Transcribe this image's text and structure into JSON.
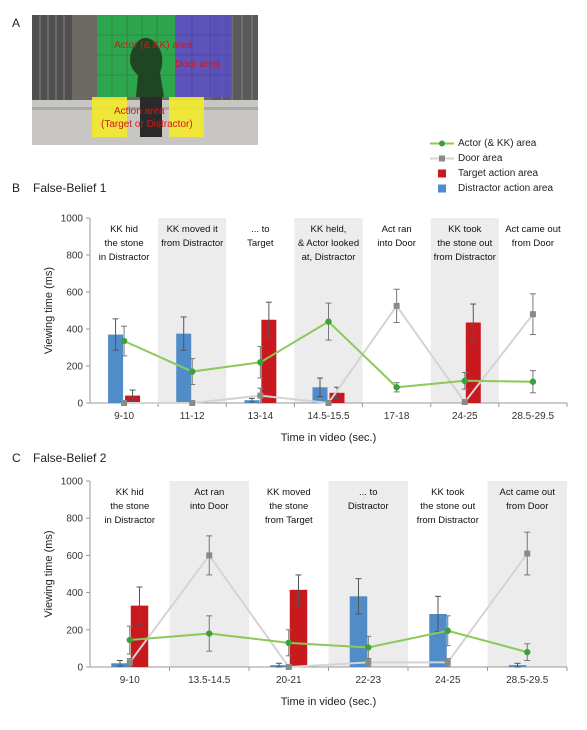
{
  "panel_a": {
    "letter": "A",
    "areas": [
      {
        "label": "Actor (& KK) area",
        "color": "#22b04a"
      },
      {
        "label": "Door area",
        "color": "#5b4fc9"
      },
      {
        "label": "Action area",
        "color": "#f2ea2a"
      },
      {
        "label": "(Target or Distractor)",
        "color": "#f2ea2a"
      }
    ]
  },
  "legend": {
    "items": [
      {
        "label": "Actor (& KK) area",
        "kind": "line-circle",
        "color": "#8cc85a"
      },
      {
        "label": "Door area",
        "kind": "line-square",
        "color": "#c8c8c8"
      },
      {
        "label": "Target action area",
        "kind": "square",
        "color": "#c8191e"
      },
      {
        "label": "Distractor action area",
        "kind": "square",
        "color": "#4f8cc8"
      }
    ]
  },
  "panel_b": {
    "letter": "B",
    "title": "False-Belief 1"
  },
  "panel_c": {
    "letter": "C",
    "title": "False-Belief 2"
  },
  "colors": {
    "actor_line": "#8cc85a",
    "actor_marker": "#3da03a",
    "door_line": "#d4d4d4",
    "door_marker": "#8a8a8a",
    "target": "#c8191e",
    "distractor": "#4f8cc8",
    "shade": "#ececec"
  },
  "chart_data": [
    {
      "type": "bar",
      "title": "False-Belief 1",
      "xlabel": "Time in video (sec.)",
      "ylabel": "Viewing time (ms)",
      "ylim": [
        0,
        1000
      ],
      "yticks": [
        0,
        200,
        400,
        600,
        800,
        1000
      ],
      "categories": [
        "9-10",
        "11-12",
        "13-14",
        "14.5-15.5",
        "17-18",
        "24-25",
        "28.5-29.5"
      ],
      "shaded": [
        false,
        true,
        false,
        true,
        false,
        true,
        false
      ],
      "annotations": [
        [
          "KK hid",
          "the stone",
          "in Distractor"
        ],
        [
          "KK moved it",
          "from Distractor"
        ],
        [
          "... to",
          "Target"
        ],
        [
          "KK held,",
          "& Actor looked",
          "at, Distractor"
        ],
        [
          "Act ran",
          "into Door"
        ],
        [
          "KK took",
          "the stone out",
          "from Distractor"
        ],
        [
          "Act came out",
          "from Door"
        ]
      ],
      "series": [
        {
          "name": "Distractor action area",
          "kind": "bar",
          "values": [
            370,
            375,
            15,
            85,
            0,
            0,
            0
          ],
          "errors": [
            85,
            90,
            10,
            50,
            0,
            0,
            0
          ]
        },
        {
          "name": "Target action area",
          "kind": "bar",
          "values": [
            40,
            0,
            450,
            55,
            0,
            435,
            0
          ],
          "errors": [
            30,
            0,
            95,
            30,
            0,
            100,
            0
          ]
        },
        {
          "name": "Actor (& KK) area",
          "kind": "line",
          "values": [
            335,
            170,
            220,
            440,
            85,
            120,
            115
          ],
          "errors": [
            80,
            70,
            85,
            100,
            25,
            45,
            60
          ]
        },
        {
          "name": "Door area",
          "kind": "line",
          "values": [
            0,
            0,
            40,
            0,
            525,
            5,
            480
          ],
          "errors": [
            0,
            0,
            40,
            0,
            90,
            0,
            110
          ]
        }
      ]
    },
    {
      "type": "bar",
      "title": "False-Belief 2",
      "xlabel": "Time in video (sec.)",
      "ylabel": "Viewing time (ms)",
      "ylim": [
        0,
        1000
      ],
      "yticks": [
        0,
        200,
        400,
        600,
        800,
        1000
      ],
      "categories": [
        "9-10",
        "13.5-14.5",
        "20-21",
        "22-23",
        "24-25",
        "28.5-29.5"
      ],
      "shaded": [
        false,
        true,
        false,
        true,
        false,
        true
      ],
      "annotations": [
        [
          "KK hid",
          "the stone",
          "in Distractor"
        ],
        [
          "Act ran",
          "into Door"
        ],
        [
          "KK moved",
          "the stone",
          "from Target"
        ],
        [
          "... to",
          "Distractor"
        ],
        [
          "KK took",
          "the stone out",
          "from Distractor"
        ],
        [
          "Act came out",
          "from Door"
        ]
      ],
      "series": [
        {
          "name": "Distractor action area",
          "kind": "bar",
          "values": [
            20,
            0,
            10,
            380,
            285,
            10
          ],
          "errors": [
            15,
            0,
            10,
            95,
            95,
            10
          ]
        },
        {
          "name": "Target action area",
          "kind": "bar",
          "values": [
            330,
            0,
            415,
            0,
            0,
            0
          ],
          "errors": [
            100,
            0,
            80,
            0,
            0,
            0
          ]
        },
        {
          "name": "Actor (& KK) area",
          "kind": "line",
          "values": [
            145,
            180,
            130,
            105,
            195,
            80
          ],
          "errors": [
            75,
            95,
            70,
            60,
            80,
            45
          ]
        },
        {
          "name": "Door area",
          "kind": "line",
          "values": [
            25,
            600,
            0,
            25,
            25,
            610
          ],
          "errors": [
            20,
            105,
            0,
            20,
            20,
            115
          ]
        }
      ]
    }
  ]
}
